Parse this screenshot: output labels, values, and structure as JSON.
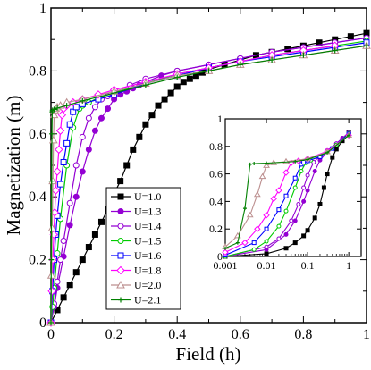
{
  "chart_data": [
    {
      "type": "line",
      "panel": "main",
      "xlabel": "Field (h)",
      "ylabel": "Magnetization (m)",
      "xlim": [
        0,
        1
      ],
      "ylim": [
        0,
        1
      ],
      "x_ticks": [
        "0",
        "0.2",
        "0.4",
        "0.6",
        "0.8",
        "1"
      ],
      "y_ticks": [
        "0",
        "0.2",
        "0.4",
        "0.6",
        "0.8",
        "1"
      ],
      "grid": false,
      "legend": {
        "placement": "center-left (inside)",
        "entries": [
          "U=1.0",
          "U=1.3",
          "U=1.4",
          "U=1.5",
          "U=1.6",
          "U=1.8",
          "U=2.0",
          "U=2.1"
        ]
      },
      "series": [
        {
          "name": "U=1.0",
          "color": "#000000",
          "marker": "filled-square",
          "x": [
            0,
            0.02,
            0.04,
            0.06,
            0.08,
            0.1,
            0.12,
            0.14,
            0.16,
            0.18,
            0.2,
            0.22,
            0.24,
            0.26,
            0.28,
            0.3,
            0.32,
            0.34,
            0.36,
            0.38,
            0.4,
            0.42,
            0.44,
            0.46,
            0.48,
            0.5,
            0.55,
            0.6,
            0.65,
            0.7,
            0.75,
            0.8,
            0.85,
            0.9,
            0.95,
            1.0
          ],
          "y": [
            0,
            0.04,
            0.08,
            0.12,
            0.16,
            0.2,
            0.24,
            0.28,
            0.32,
            0.36,
            0.41,
            0.45,
            0.5,
            0.55,
            0.59,
            0.63,
            0.66,
            0.69,
            0.71,
            0.73,
            0.75,
            0.765,
            0.775,
            0.785,
            0.795,
            0.805,
            0.82,
            0.835,
            0.85,
            0.86,
            0.87,
            0.88,
            0.89,
            0.9,
            0.91,
            0.92
          ]
        },
        {
          "name": "U=1.3",
          "color": "#9400d3",
          "marker": "filled-circle",
          "x": [
            0,
            0.01,
            0.02,
            0.04,
            0.06,
            0.08,
            0.1,
            0.12,
            0.14,
            0.16,
            0.18,
            0.2,
            0.22,
            0.24,
            0.26,
            0.28,
            0.3,
            0.35,
            0.4,
            0.5,
            0.6,
            0.7,
            0.8,
            0.9,
            1.0
          ],
          "y": [
            0,
            0.05,
            0.11,
            0.21,
            0.31,
            0.4,
            0.48,
            0.55,
            0.61,
            0.65,
            0.68,
            0.71,
            0.725,
            0.735,
            0.745,
            0.755,
            0.765,
            0.785,
            0.8,
            0.82,
            0.84,
            0.86,
            0.875,
            0.89,
            0.905
          ]
        },
        {
          "name": "U=1.4",
          "color": "#9400d3",
          "marker": "open-circle",
          "x": [
            0,
            0.01,
            0.02,
            0.03,
            0.04,
            0.06,
            0.08,
            0.1,
            0.12,
            0.14,
            0.16,
            0.18,
            0.2,
            0.25,
            0.3,
            0.4,
            0.5,
            0.6,
            0.7,
            0.8,
            0.9,
            1.0
          ],
          "y": [
            0,
            0.06,
            0.13,
            0.2,
            0.26,
            0.38,
            0.5,
            0.59,
            0.65,
            0.685,
            0.71,
            0.72,
            0.73,
            0.755,
            0.775,
            0.8,
            0.82,
            0.84,
            0.86,
            0.875,
            0.89,
            0.905
          ]
        },
        {
          "name": "U=1.5",
          "color": "#00cc00",
          "marker": "open-circle",
          "x": [
            0,
            0.005,
            0.01,
            0.02,
            0.03,
            0.05,
            0.07,
            0.09,
            0.1,
            0.12,
            0.15,
            0.2,
            0.3,
            0.4,
            0.5,
            0.6,
            0.7,
            0.8,
            0.9,
            1.0
          ],
          "y": [
            0,
            0.05,
            0.11,
            0.22,
            0.33,
            0.5,
            0.62,
            0.68,
            0.69,
            0.7,
            0.715,
            0.73,
            0.76,
            0.79,
            0.81,
            0.83,
            0.85,
            0.865,
            0.88,
            0.895
          ]
        },
        {
          "name": "U=1.6",
          "color": "#0000ff",
          "marker": "open-square",
          "x": [
            0,
            0.005,
            0.01,
            0.015,
            0.02,
            0.03,
            0.04,
            0.05,
            0.06,
            0.07,
            0.08,
            0.1,
            0.15,
            0.2,
            0.3,
            0.4,
            0.5,
            0.6,
            0.7,
            0.8,
            0.9,
            1.0
          ],
          "y": [
            0,
            0.1,
            0.2,
            0.28,
            0.34,
            0.44,
            0.51,
            0.57,
            0.63,
            0.67,
            0.685,
            0.695,
            0.71,
            0.725,
            0.76,
            0.785,
            0.81,
            0.83,
            0.845,
            0.86,
            0.875,
            0.89
          ]
        },
        {
          "name": "U=1.8",
          "color": "#ff00ff",
          "marker": "open-diamond",
          "x": [
            0,
            0.003,
            0.006,
            0.009,
            0.012,
            0.015,
            0.02,
            0.025,
            0.03,
            0.035,
            0.04,
            0.05,
            0.07,
            0.1,
            0.15,
            0.2,
            0.3,
            0.4,
            0.5,
            0.6,
            0.7,
            0.8,
            0.9
          ],
          "y": [
            0,
            0.1,
            0.2,
            0.28,
            0.35,
            0.42,
            0.48,
            0.55,
            0.61,
            0.66,
            0.68,
            0.69,
            0.7,
            0.71,
            0.725,
            0.74,
            0.765,
            0.79,
            0.81,
            0.83,
            0.85,
            0.865,
            0.88
          ]
        },
        {
          "name": "U=2.0",
          "color": "#bc8f8f",
          "marker": "open-triangle",
          "x": [
            0,
            0.002,
            0.004,
            0.006,
            0.008,
            0.01,
            0.012,
            0.015,
            0.02,
            0.03,
            0.05,
            0.1,
            0.2,
            0.3,
            0.4,
            0.5,
            0.6,
            0.7,
            0.8,
            0.9,
            1.0
          ],
          "y": [
            0,
            0.15,
            0.3,
            0.45,
            0.58,
            0.66,
            0.675,
            0.68,
            0.685,
            0.69,
            0.7,
            0.71,
            0.735,
            0.76,
            0.785,
            0.8,
            0.82,
            0.835,
            0.85,
            0.865,
            0.88
          ]
        },
        {
          "name": "U=2.1",
          "color": "#008000",
          "marker": "plus",
          "x": [
            0,
            0.001,
            0.002,
            0.003,
            0.004,
            0.005,
            0.01,
            0.02,
            0.05,
            0.1,
            0.2,
            0.3,
            0.4,
            0.5,
            0.6,
            0.7,
            0.8,
            0.9,
            1.0
          ],
          "y": [
            0,
            0.2,
            0.45,
            0.6,
            0.67,
            0.675,
            0.678,
            0.682,
            0.69,
            0.705,
            0.73,
            0.755,
            0.78,
            0.8,
            0.82,
            0.835,
            0.85,
            0.865,
            0.88
          ]
        }
      ]
    },
    {
      "type": "line",
      "panel": "inset",
      "x_scale": "log",
      "xlim": [
        0.001,
        2
      ],
      "ylim": [
        0,
        1
      ],
      "x_ticks": [
        "0.001",
        "0.01",
        "0.1",
        "1"
      ],
      "y_ticks": [
        "0",
        "0.2",
        "0.4",
        "0.6",
        "0.8",
        "1"
      ],
      "series_names_from": "main panel legend",
      "series": [
        {
          "name": "U=1.0",
          "x": [
            0.001,
            0.01,
            0.03,
            0.05,
            0.08,
            0.1,
            0.15,
            0.2,
            0.25,
            0.3,
            0.4,
            0.5,
            0.7,
            1.0
          ],
          "y": [
            0,
            0.02,
            0.06,
            0.1,
            0.15,
            0.19,
            0.28,
            0.38,
            0.5,
            0.6,
            0.72,
            0.78,
            0.84,
            0.9
          ]
        },
        {
          "name": "U=1.3",
          "x": [
            0.001,
            0.01,
            0.03,
            0.05,
            0.08,
            0.1,
            0.15,
            0.2,
            0.3,
            0.5,
            0.7,
            1.0
          ],
          "y": [
            0,
            0.05,
            0.16,
            0.26,
            0.4,
            0.48,
            0.62,
            0.7,
            0.76,
            0.82,
            0.86,
            0.9
          ]
        },
        {
          "name": "U=1.4",
          "x": [
            0.001,
            0.01,
            0.02,
            0.04,
            0.06,
            0.08,
            0.1,
            0.14,
            0.2,
            0.3,
            0.5,
            1.0
          ],
          "y": [
            0,
            0.07,
            0.13,
            0.26,
            0.38,
            0.5,
            0.59,
            0.685,
            0.73,
            0.77,
            0.82,
            0.9
          ]
        },
        {
          "name": "U=1.5",
          "x": [
            0.001,
            0.005,
            0.01,
            0.02,
            0.03,
            0.05,
            0.07,
            0.09,
            0.12,
            0.2,
            0.3,
            0.5,
            1.0
          ],
          "y": [
            0,
            0.05,
            0.11,
            0.22,
            0.33,
            0.5,
            0.62,
            0.68,
            0.7,
            0.73,
            0.76,
            0.81,
            0.895
          ]
        },
        {
          "name": "U=1.6",
          "x": [
            0.001,
            0.005,
            0.01,
            0.02,
            0.03,
            0.05,
            0.07,
            0.08,
            0.1,
            0.2,
            0.4,
            1.0
          ],
          "y": [
            0.01,
            0.1,
            0.2,
            0.34,
            0.44,
            0.57,
            0.67,
            0.685,
            0.695,
            0.725,
            0.785,
            0.89
          ]
        },
        {
          "name": "U=1.8",
          "x": [
            0.001,
            0.003,
            0.006,
            0.01,
            0.015,
            0.02,
            0.03,
            0.04,
            0.06,
            0.1,
            0.3,
            1.0
          ],
          "y": [
            0.03,
            0.1,
            0.2,
            0.3,
            0.42,
            0.48,
            0.61,
            0.68,
            0.695,
            0.71,
            0.765,
            0.88
          ]
        },
        {
          "name": "U=2.0",
          "x": [
            0.001,
            0.002,
            0.004,
            0.006,
            0.008,
            0.01,
            0.015,
            0.03,
            0.1,
            0.3,
            1.0
          ],
          "y": [
            0.07,
            0.15,
            0.3,
            0.45,
            0.58,
            0.66,
            0.68,
            0.69,
            0.71,
            0.76,
            0.88
          ]
        },
        {
          "name": "U=2.1",
          "x": [
            0.001,
            0.002,
            0.003,
            0.004,
            0.005,
            0.01,
            0.05,
            0.1,
            0.3,
            1.0
          ],
          "y": [
            0.06,
            0.1,
            0.35,
            0.67,
            0.675,
            0.678,
            0.69,
            0.705,
            0.755,
            0.88
          ]
        }
      ]
    }
  ]
}
